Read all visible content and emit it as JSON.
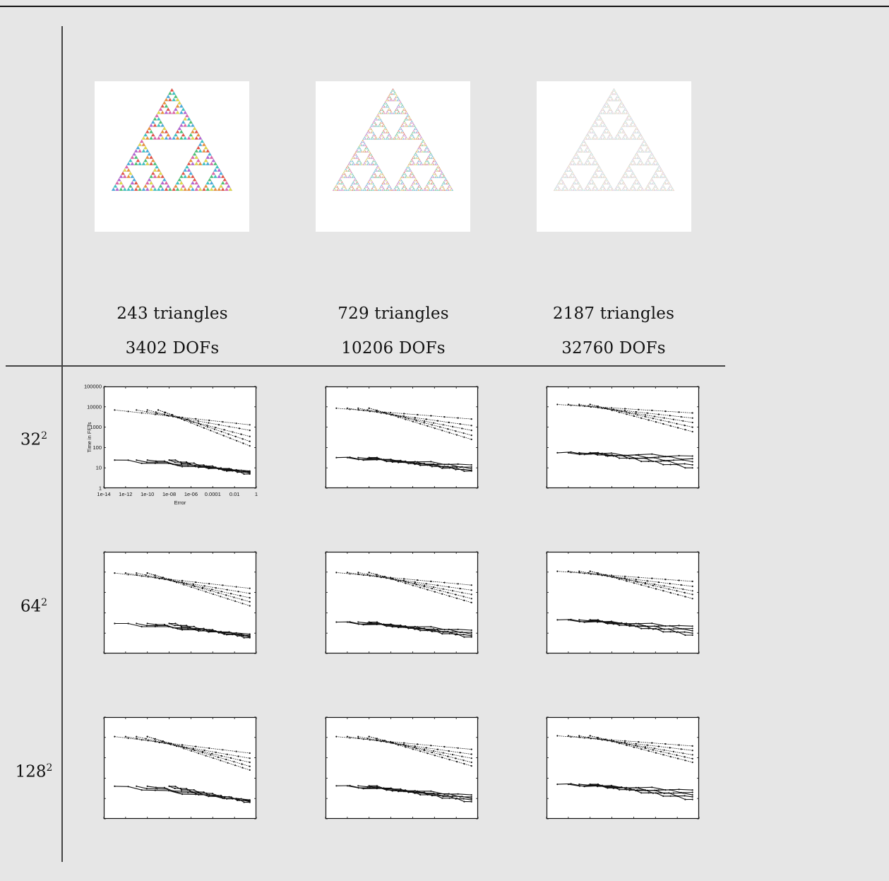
{
  "meshes": [
    {
      "triangles": "243 triangles",
      "dofs": "3402 DOFs",
      "level": 5
    },
    {
      "triangles": "729 triangles",
      "dofs": "10206 DOFs",
      "level": 6
    },
    {
      "triangles": "2187 triangles",
      "dofs": "32760 DOFs",
      "level": 7
    }
  ],
  "rows": [
    {
      "base": "32",
      "exp": "2"
    },
    {
      "base": "64",
      "exp": "2"
    },
    {
      "base": "128",
      "exp": "2"
    }
  ],
  "colors": {
    "background": "#e6e6e6",
    "rule": "#444444",
    "triangle_palette": [
      "#e8473c",
      "#3aa8e0",
      "#e3d93a",
      "#3ec46d",
      "#b35ad6",
      "#f08a2c",
      "#2cc4c4",
      "#e25aa8"
    ]
  },
  "chart_data": {
    "type": "line",
    "xlabel": "Error",
    "ylabel": "Time in FFTs",
    "x_scale": "log",
    "y_scale": "log",
    "xticks": [
      "1e-14",
      "1e-12",
      "1e-10",
      "1e-08",
      "1e-06",
      "0.0001",
      "0.01",
      "1"
    ],
    "yticks": [
      "1",
      "10",
      "100",
      "1000",
      "10000",
      "100000"
    ],
    "xlim": [
      1e-14,
      1
    ],
    "ylim": [
      1,
      100000
    ],
    "axes_labels_shown_on": "row 1, column 1 only",
    "panels": [
      {
        "row": 0,
        "col": 0,
        "groups": [
          {
            "style": "dotted",
            "y0": 7000,
            "starts": [
              1e-13,
              1e-11,
              1e-10,
              1e-09
            ],
            "ends": [
              1300,
              700,
              350,
              200,
              120
            ]
          },
          {
            "style": "solid",
            "y0": 24,
            "starts": [
              1e-13,
              1e-11,
              1e-10,
              1e-08
            ],
            "ends": [
              7,
              6.5,
              6,
              5.5,
              5
            ]
          }
        ]
      },
      {
        "row": 0,
        "col": 1,
        "groups": [
          {
            "style": "dotted",
            "y0": 8500,
            "starts": [
              1e-13,
              1e-12,
              1e-11,
              1e-10
            ],
            "ends": [
              2500,
              1200,
              700,
              400,
              250
            ]
          },
          {
            "style": "solid",
            "y0": 32,
            "starts": [
              1e-13,
              1e-12,
              1e-11,
              1e-10
            ],
            "ends": [
              14,
              11,
              9,
              7.5,
              7
            ]
          }
        ]
      },
      {
        "row": 0,
        "col": 2,
        "groups": [
          {
            "style": "dotted",
            "y0": 13000,
            "starts": [
              1e-13,
              1e-12,
              1e-11,
              1e-10
            ],
            "ends": [
              5000,
              2800,
              1700,
              1000,
              600
            ]
          },
          {
            "style": "solid",
            "y0": 55,
            "starts": [
              1e-13,
              1e-12,
              1e-11,
              1e-10
            ],
            "ends": [
              38,
              28,
              20,
              14,
              10
            ]
          }
        ]
      },
      {
        "row": 1,
        "col": 0,
        "groups": [
          {
            "style": "dotted",
            "y0": 9000,
            "starts": [
              1e-13,
              1e-12,
              1e-11,
              1e-10
            ],
            "ends": [
              1600,
              900,
              550,
              350,
              220
            ]
          },
          {
            "style": "solid",
            "y0": 30,
            "starts": [
              1e-13,
              1e-11,
              1e-10,
              1e-08
            ],
            "ends": [
              9,
              8,
              7,
              6.5,
              6
            ]
          }
        ]
      },
      {
        "row": 1,
        "col": 1,
        "groups": [
          {
            "style": "dotted",
            "y0": 9500,
            "starts": [
              1e-13,
              1e-12,
              1e-11,
              1e-10
            ],
            "ends": [
              2300,
              1300,
              800,
              500,
              320
            ]
          },
          {
            "style": "solid",
            "y0": 35,
            "starts": [
              1e-13,
              1e-12,
              1e-11,
              1e-10
            ],
            "ends": [
              14,
              11,
              9,
              7.5,
              6.5
            ]
          }
        ]
      },
      {
        "row": 1,
        "col": 2,
        "groups": [
          {
            "style": "dotted",
            "y0": 11000,
            "starts": [
              1e-13,
              1e-12,
              1e-11,
              1e-10
            ],
            "ends": [
              3500,
              2000,
              1200,
              800,
              500
            ]
          },
          {
            "style": "solid",
            "y0": 45,
            "starts": [
              1e-13,
              1e-12,
              1e-11,
              1e-10
            ],
            "ends": [
              22,
              17,
              13,
              10,
              8
            ]
          }
        ]
      },
      {
        "row": 2,
        "col": 0,
        "groups": [
          {
            "style": "dotted",
            "y0": 11000,
            "starts": [
              1e-13,
              1e-12,
              1e-11,
              1e-10
            ],
            "ends": [
              1700,
              950,
              600,
              380,
              250
            ]
          },
          {
            "style": "solid",
            "y0": 40,
            "starts": [
              1e-13,
              1e-11,
              1e-10,
              1e-08
            ],
            "ends": [
              8.5,
              8,
              7.5,
              7,
              6.5
            ]
          }
        ]
      },
      {
        "row": 2,
        "col": 1,
        "groups": [
          {
            "style": "dotted",
            "y0": 11000,
            "starts": [
              1e-13,
              1e-12,
              1e-11,
              1e-10
            ],
            "ends": [
              2600,
              1500,
              950,
              600,
              400
            ]
          },
          {
            "style": "solid",
            "y0": 42,
            "starts": [
              1e-13,
              1e-12,
              1e-11,
              1e-10
            ],
            "ends": [
              15,
              12,
              10,
              8.5,
              7
            ]
          }
        ]
      },
      {
        "row": 2,
        "col": 2,
        "groups": [
          {
            "style": "dotted",
            "y0": 12000,
            "starts": [
              1e-13,
              1e-12,
              1e-11,
              1e-10
            ],
            "ends": [
              3800,
              2300,
              1400,
              900,
              600
            ]
          },
          {
            "style": "solid",
            "y0": 50,
            "starts": [
              1e-13,
              1e-12,
              1e-11,
              1e-10
            ],
            "ends": [
              26,
              20,
              15,
              12,
              9
            ]
          }
        ]
      }
    ]
  }
}
